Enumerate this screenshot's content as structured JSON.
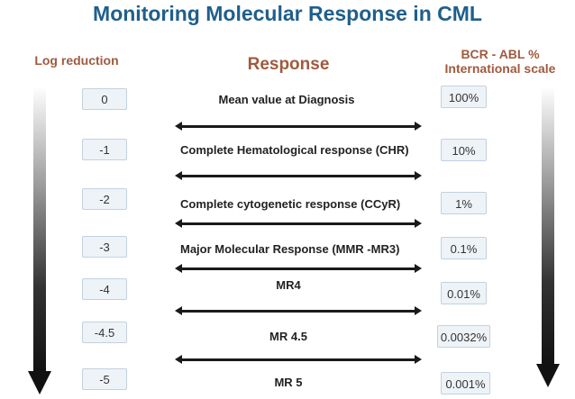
{
  "title": "Monitoring Molecular Response in CML",
  "headers": {
    "left": "Log reduction",
    "middle": "Response",
    "right_line1": "BCR - ABL %",
    "right_line2": "International scale"
  },
  "rows": [
    {
      "log": "0",
      "response": "Mean value at Diagnosis",
      "bcr_abl": "100%"
    },
    {
      "log": "-1",
      "response": "Complete Hematological response (CHR)",
      "bcr_abl": "10%"
    },
    {
      "log": "-2",
      "response": "Complete cytogenetic response  (CCyR)",
      "bcr_abl": "1%"
    },
    {
      "log": "-3",
      "response": "Major Molecular Response (MMR -MR3)",
      "bcr_abl": "0.1%"
    },
    {
      "log": "-4",
      "response": "MR4",
      "bcr_abl": "0.01%"
    },
    {
      "log": "-4.5",
      "response": "MR 4.5",
      "bcr_abl": "0.0032%"
    },
    {
      "log": "-5",
      "response": "MR 5",
      "bcr_abl": "0.001%"
    }
  ],
  "colors": {
    "title": "#1f5f8b",
    "headers": "#a05a3e",
    "arrow": "#1a1a1a",
    "box_fill": "#eef3f8",
    "box_border": "#c2d1df"
  }
}
